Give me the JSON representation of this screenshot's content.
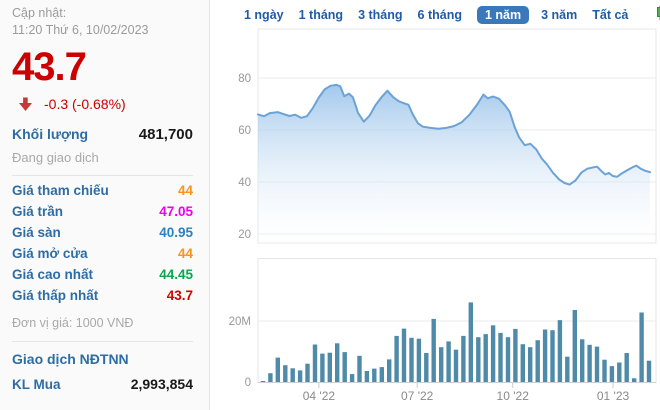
{
  "sidebar": {
    "updated_label": "Cập nhật:",
    "updated_time": "11:20 Thứ 6, 10/02/2023",
    "price": "43.7",
    "change": "-0.3 (-0.68%)",
    "volume_label": "Khối lượng",
    "volume_value": "481,700",
    "session_status": "Đang giao dịch",
    "rows": [
      {
        "label": "Giá tham chiếu",
        "value": "44",
        "color": "#f7941d"
      },
      {
        "label": "Giá trần",
        "value": "47.05",
        "color": "#ee00ee"
      },
      {
        "label": "Giá sàn",
        "value": "40.95",
        "color": "#2f80c0"
      },
      {
        "label": "Giá mở cửa",
        "value": "44",
        "color": "#f7941d"
      },
      {
        "label": "Giá cao nhất",
        "value": "44.45",
        "color": "#09a64e"
      },
      {
        "label": "Giá thấp nhất",
        "value": "43.7",
        "color": "#d40000"
      }
    ],
    "unit_note": "Đơn vị giá: 1000 VNĐ",
    "foreign_header": "Giao dịch NĐTNN",
    "kl_mua_label": "KL Mua",
    "kl_mua_value": "2,993,854"
  },
  "tabs": {
    "items": [
      "1 ngày",
      "1 tháng",
      "3 tháng",
      "6 tháng",
      "1 năm",
      "3 năm",
      "Tất cả"
    ],
    "active_index": 4,
    "candle_icon": "candlestick-chart-icon"
  },
  "colors": {
    "price_down_red": "#cc0000",
    "label_blue": "#2e6da4",
    "tab_blue": "#1e5ca8",
    "active_tab_bg": "#3a78ba",
    "area_line": "#6ba3d6",
    "area_fill_top": "#7db2e4",
    "volume_bar": "#4f8aa8",
    "axis_text": "#999999",
    "gridline": "#ebebeb"
  },
  "chart_data": [
    {
      "type": "area",
      "name": "price-1-year",
      "title": "",
      "xlabel": "",
      "ylabel": "",
      "ylim": [
        17,
        98
      ],
      "yticks": [
        20,
        40,
        60,
        80
      ],
      "grid": true,
      "legend": false,
      "points": [
        [
          0,
          66
        ],
        [
          0.015,
          65.3
        ],
        [
          0.03,
          66.5
        ],
        [
          0.05,
          66.9
        ],
        [
          0.065,
          66.1
        ],
        [
          0.08,
          65.4
        ],
        [
          0.095,
          65.9
        ],
        [
          0.11,
          64.7
        ],
        [
          0.125,
          65.3
        ],
        [
          0.14,
          68.5
        ],
        [
          0.155,
          72.5
        ],
        [
          0.17,
          75.6
        ],
        [
          0.185,
          77
        ],
        [
          0.2,
          77.4
        ],
        [
          0.21,
          76.8
        ],
        [
          0.22,
          73
        ],
        [
          0.232,
          74
        ],
        [
          0.242,
          72.6
        ],
        [
          0.255,
          66.6
        ],
        [
          0.27,
          63.2
        ],
        [
          0.285,
          65.6
        ],
        [
          0.3,
          69.6
        ],
        [
          0.315,
          72.6
        ],
        [
          0.33,
          75.1
        ],
        [
          0.345,
          72.6
        ],
        [
          0.36,
          71
        ],
        [
          0.372,
          70.3
        ],
        [
          0.384,
          69.7
        ],
        [
          0.395,
          66
        ],
        [
          0.408,
          62.6
        ],
        [
          0.42,
          61.3
        ],
        [
          0.44,
          60.8
        ],
        [
          0.46,
          60.5
        ],
        [
          0.48,
          60.8
        ],
        [
          0.5,
          61.5
        ],
        [
          0.52,
          63
        ],
        [
          0.54,
          66
        ],
        [
          0.56,
          70
        ],
        [
          0.575,
          73.6
        ],
        [
          0.586,
          72.2
        ],
        [
          0.6,
          72.9
        ],
        [
          0.615,
          72
        ],
        [
          0.63,
          69.5
        ],
        [
          0.642,
          67
        ],
        [
          0.655,
          61
        ],
        [
          0.666,
          57.2
        ],
        [
          0.68,
          54.2
        ],
        [
          0.695,
          54.7
        ],
        [
          0.71,
          52.5
        ],
        [
          0.724,
          49
        ],
        [
          0.738,
          46.6
        ],
        [
          0.752,
          43.6
        ],
        [
          0.768,
          41
        ],
        [
          0.782,
          39.6
        ],
        [
          0.795,
          39
        ],
        [
          0.81,
          40.6
        ],
        [
          0.825,
          43.6
        ],
        [
          0.84,
          45.1
        ],
        [
          0.855,
          45.6
        ],
        [
          0.865,
          45.9
        ],
        [
          0.876,
          44.2
        ],
        [
          0.886,
          42.9
        ],
        [
          0.895,
          43.5
        ],
        [
          0.905,
          42.3
        ],
        [
          0.916,
          42
        ],
        [
          0.926,
          43.1
        ],
        [
          0.94,
          44.4
        ],
        [
          0.955,
          45.6
        ],
        [
          0.965,
          46.3
        ],
        [
          0.976,
          45.1
        ],
        [
          0.988,
          44.3
        ],
        [
          1,
          43.8
        ]
      ]
    },
    {
      "type": "bar",
      "name": "volume-weekly",
      "unit": "M",
      "ylim": [
        0,
        40
      ],
      "yticks": [
        {
          "value": 20,
          "label": "20M"
        },
        {
          "value": 0,
          "label": "0"
        }
      ],
      "values": [
        0.3,
        2.9,
        8.0,
        5.5,
        4.5,
        3.8,
        6.0,
        12.3,
        9.3,
        9.6,
        12.7,
        9.8,
        2.6,
        8.6,
        3.6,
        4.4,
        4.9,
        7.4,
        15.1,
        17.5,
        14.5,
        14.2,
        9.5,
        20.7,
        11.4,
        13.3,
        10.6,
        15.1,
        26.1,
        14.7,
        15.7,
        18.6,
        16.1,
        14.7,
        17.4,
        12.4,
        11.4,
        13.7,
        17.2,
        17.0,
        20.3,
        8.3,
        23.6,
        14.0,
        12.2,
        11.6,
        7.3,
        5.2,
        6.4,
        9.5,
        1.2,
        22.8,
        7.0
      ],
      "x_labels": [
        {
          "label": "04 '22",
          "f": 0.153
        },
        {
          "label": "07 '22",
          "f": 0.4
        },
        {
          "label": "10 '22",
          "f": 0.64
        },
        {
          "label": "01 '23",
          "f": 0.892
        }
      ]
    }
  ]
}
